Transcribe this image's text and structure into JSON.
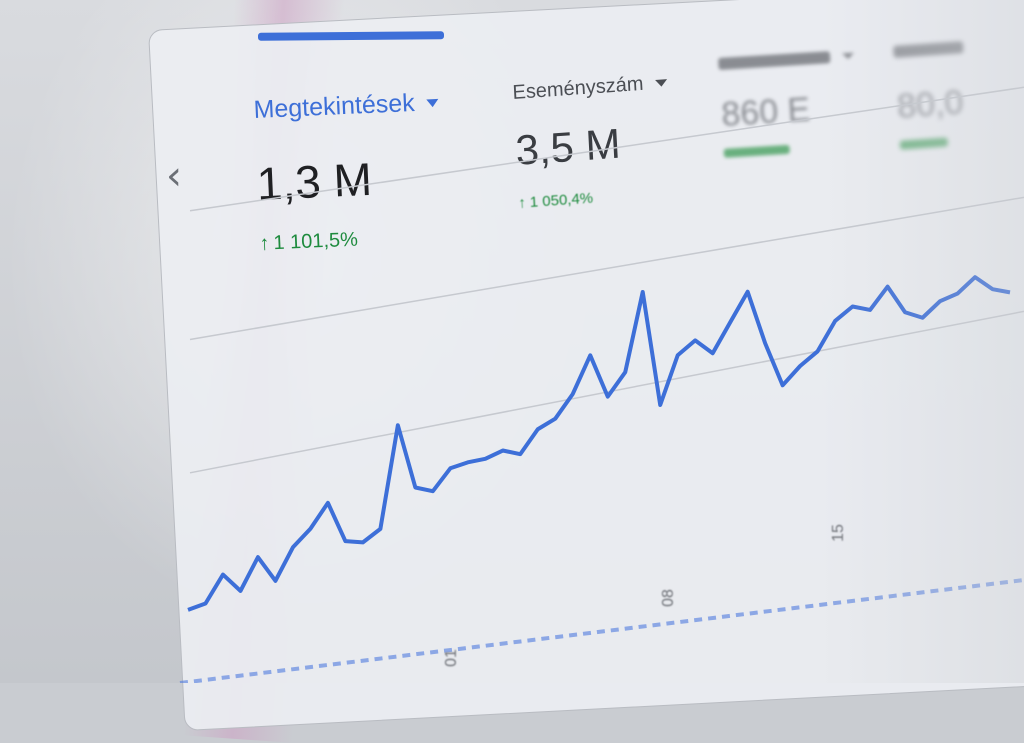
{
  "metrics": [
    {
      "label": "Megtekintések",
      "value": "1,3 M",
      "change_arrow": "↑",
      "change": "1 101,5%",
      "dropdown_icon": "chevron-down-icon"
    },
    {
      "label": "Eseményszám",
      "value": "3,5 M",
      "change_arrow": "↑",
      "change": "1 050,4%",
      "dropdown_icon": "chevron-down-icon"
    },
    {
      "label": "",
      "value": "860 E",
      "change": ""
    },
    {
      "label": "",
      "value": "80,0",
      "change": ""
    }
  ],
  "nav": {
    "prev_icon": "chevron-left-icon",
    "prev_glyph": "‹"
  },
  "colors": {
    "accent": "#3d6fd8",
    "positive": "#1e8b3e",
    "text": "#1f2023"
  },
  "chart_data": {
    "type": "line",
    "series": [
      {
        "values": [
          0.06,
          0.07,
          0.17,
          0.09,
          0.21,
          0.1,
          0.22,
          0.28,
          0.37,
          0.2,
          0.18,
          0.22,
          0.63,
          0.36,
          0.33,
          0.41,
          0.42,
          0.42,
          0.44,
          0.41,
          0.5,
          0.53,
          0.62,
          0.77,
          0.58,
          0.67,
          1.0,
          0.5,
          0.7,
          0.75,
          0.68,
          0.8,
          0.92,
          0.68,
          0.48,
          0.55,
          0.6,
          0.72,
          0.77,
          0.74,
          0.83,
          0.7,
          0.66,
          0.72,
          0.74,
          0.8,
          0.73,
          0.7
        ]
      }
    ],
    "x_tick_labels": [
      "01",
      "08",
      "15"
    ]
  }
}
